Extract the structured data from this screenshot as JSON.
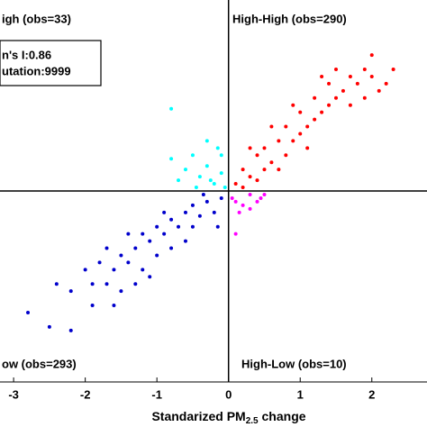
{
  "chart_data": {
    "type": "scatter",
    "xlabel_parts": [
      "Standarized PM",
      "2.5",
      "change"
    ],
    "annotations": [
      "igh (obs=33)",
      "High-High (obs=290)",
      "ow (obs=293)",
      "High-Low (obs=10)"
    ],
    "stats_box": [
      "n's I:0.86",
      "utation:9999"
    ],
    "xlim": [
      -3.19,
      2.77
    ],
    "ylim": [
      -2.67,
      2.67
    ],
    "xticks": [
      -3,
      -2,
      -1,
      0,
      1,
      2
    ],
    "series": [
      {
        "color": "#ff0000",
        "x": [
          0.1,
          0.2,
          0.3,
          0.4,
          0.5,
          0.5,
          0.6,
          0.7,
          0.8,
          0.8,
          0.9,
          1.0,
          1.0,
          1.1,
          1.2,
          1.2,
          1.3,
          1.4,
          1.4,
          1.5,
          1.6,
          1.7,
          1.8,
          1.9,
          2.0,
          2.1,
          2.3,
          1.5,
          0.3,
          0.6,
          1.1,
          0.2,
          0.9,
          1.7,
          2.2,
          0.4,
          1.3,
          0.7,
          1.9,
          2.0
        ],
        "values": [
          0.1,
          0.3,
          0.2,
          0.5,
          0.3,
          0.6,
          0.4,
          0.7,
          0.5,
          0.9,
          0.7,
          0.8,
          1.1,
          0.9,
          1.0,
          1.3,
          1.1,
          1.2,
          1.5,
          1.3,
          1.4,
          1.6,
          1.5,
          1.7,
          1.6,
          1.4,
          1.7,
          1.7,
          0.6,
          0.9,
          0.6,
          0.05,
          1.2,
          1.2,
          1.5,
          0.15,
          1.6,
          0.3,
          1.3,
          1.9
        ]
      },
      {
        "color": "#00ffff",
        "x": [
          -0.8,
          -0.6,
          -0.5,
          -0.4,
          -0.3,
          -0.2,
          -0.15,
          -0.1,
          -0.05,
          -0.3,
          -0.8,
          -0.7,
          -0.25,
          -0.45,
          -0.1
        ],
        "values": [
          0.45,
          0.3,
          0.5,
          0.2,
          0.35,
          0.1,
          0.6,
          0.25,
          0.05,
          0.7,
          1.15,
          0.15,
          0.15,
          0.05,
          0.5
        ]
      },
      {
        "color": "#0000cc",
        "x": [
          -2.8,
          -2.5,
          -2.2,
          -2.2,
          -1.9,
          -1.8,
          -1.7,
          -1.6,
          -1.5,
          -1.5,
          -1.4,
          -1.3,
          -1.2,
          -1.1,
          -1.0,
          -1.0,
          -0.9,
          -0.8,
          -0.8,
          -0.7,
          -0.6,
          -0.5,
          -0.5,
          -0.4,
          -0.3,
          -0.2,
          -0.1,
          -1.2,
          -1.9,
          -2.0,
          -1.6,
          -0.6,
          -1.1,
          -0.35,
          -2.4,
          -1.3,
          -0.9,
          -1.7,
          -0.15,
          -1.4
        ],
        "values": [
          -1.7,
          -1.9,
          -1.4,
          -1.95,
          -1.3,
          -1.0,
          -1.3,
          -1.1,
          -0.9,
          -1.4,
          -1.0,
          -0.8,
          -1.1,
          -0.7,
          -0.9,
          -0.5,
          -0.6,
          -0.4,
          -0.8,
          -0.5,
          -0.3,
          -0.5,
          -0.2,
          -0.35,
          -0.15,
          -0.3,
          -0.1,
          -0.6,
          -1.6,
          -1.1,
          -1.6,
          -0.7,
          -1.2,
          -0.05,
          -1.3,
          -1.3,
          -0.3,
          -0.8,
          -0.5,
          -0.6
        ]
      },
      {
        "color": "#ff00ff",
        "x": [
          0.05,
          0.15,
          0.3,
          0.4,
          0.5,
          0.2,
          0.1,
          0.3,
          0.45,
          0.1
        ],
        "values": [
          -0.1,
          -0.3,
          -0.05,
          -0.15,
          -0.05,
          -0.2,
          -0.15,
          -0.25,
          -0.1,
          -0.6
        ]
      }
    ]
  }
}
